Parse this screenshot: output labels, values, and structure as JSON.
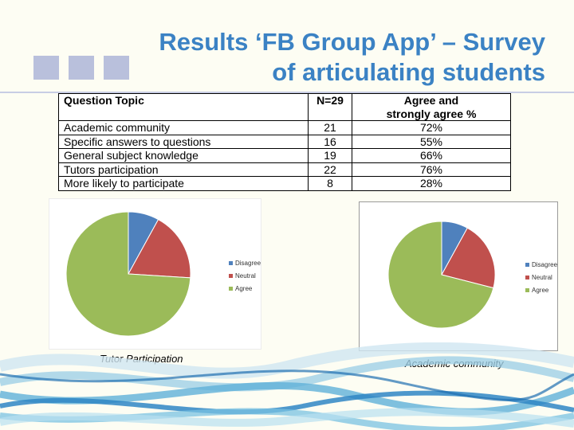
{
  "title": {
    "line1": "Results ‘FB Group App’ – Survey",
    "line2": "of articulating students"
  },
  "table": {
    "headers": [
      "Question Topic",
      "N=29",
      "Agree and strongly agree %"
    ],
    "rows": [
      [
        "Academic community",
        "21",
        "72%"
      ],
      [
        "Specific answers to questions",
        "16",
        "55%"
      ],
      [
        "General subject knowledge",
        "19",
        "66%"
      ],
      [
        "Tutors participation",
        "22",
        "76%"
      ],
      [
        "More likely to participate",
        "8",
        "28%"
      ]
    ]
  },
  "chart_data": [
    {
      "type": "pie",
      "categories": [
        "Disagree",
        "Neutral",
        "Agree"
      ],
      "values": [
        8,
        18,
        74
      ],
      "colors": [
        "#4f81bd",
        "#c0504d",
        "#9bbb59"
      ],
      "legend": "right",
      "caption": "Tutor Participation"
    },
    {
      "type": "pie",
      "categories": [
        "Disagree",
        "Neutral",
        "Agree"
      ],
      "values": [
        8,
        21,
        71
      ],
      "colors": [
        "#4f81bd",
        "#c0504d",
        "#9bbb59"
      ],
      "legend": "right",
      "caption": "Academic community"
    }
  ]
}
